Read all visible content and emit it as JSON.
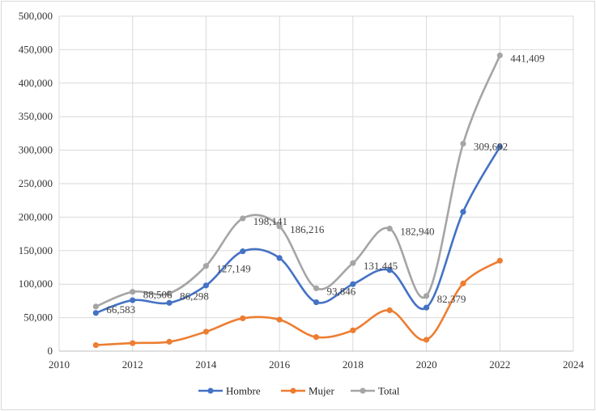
{
  "chart_data": {
    "type": "line",
    "title": "",
    "xlabel": "",
    "ylabel": "",
    "xlim": [
      2010,
      2024
    ],
    "ylim": [
      0,
      500000
    ],
    "x_ticks": [
      "2010",
      "2012",
      "2014",
      "2016",
      "2018",
      "2020",
      "2022",
      "2024"
    ],
    "y_ticks": [
      "0",
      "50,000",
      "100,000",
      "150,000",
      "200,000",
      "250,000",
      "300,000",
      "350,000",
      "400,000",
      "450,000",
      "500,000"
    ],
    "grid": true,
    "legend_position": "bottom",
    "x": [
      2011,
      2012,
      2013,
      2014,
      2015,
      2016,
      2017,
      2018,
      2019,
      2020,
      2021,
      2022
    ],
    "series": [
      {
        "name": "Hombre",
        "color": "#4472c4",
        "values": [
          57000,
          76000,
          72000,
          98000,
          149000,
          139000,
          73000,
          100000,
          121000,
          65000,
          208000,
          305000
        ]
      },
      {
        "name": "Mujer",
        "color": "#ed7d31",
        "values": [
          9000,
          12000,
          14000,
          29000,
          49000,
          47000,
          21000,
          31000,
          61000,
          17000,
          101000,
          135000
        ]
      },
      {
        "name": "Total",
        "color": "#a5a5a5",
        "values": [
          66583,
          88506,
          86298,
          127149,
          198141,
          186216,
          93846,
          131445,
          182940,
          82379,
          309692,
          441409
        ]
      }
    ],
    "data_labels": [
      {
        "x": 2011,
        "text": "66,583"
      },
      {
        "x": 2012,
        "text": "88,506"
      },
      {
        "x": 2013,
        "text": "86,298"
      },
      {
        "x": 2014,
        "text": "127,149"
      },
      {
        "x": 2015,
        "text": "198,141"
      },
      {
        "x": 2016,
        "text": "186,216"
      },
      {
        "x": 2017,
        "text": "93,846"
      },
      {
        "x": 2018,
        "text": "131,445"
      },
      {
        "x": 2019,
        "text": "182,940"
      },
      {
        "x": 2020,
        "text": "82,379"
      },
      {
        "x": 2021,
        "text": "309,692"
      },
      {
        "x": 2022,
        "text": "441,409"
      }
    ]
  }
}
